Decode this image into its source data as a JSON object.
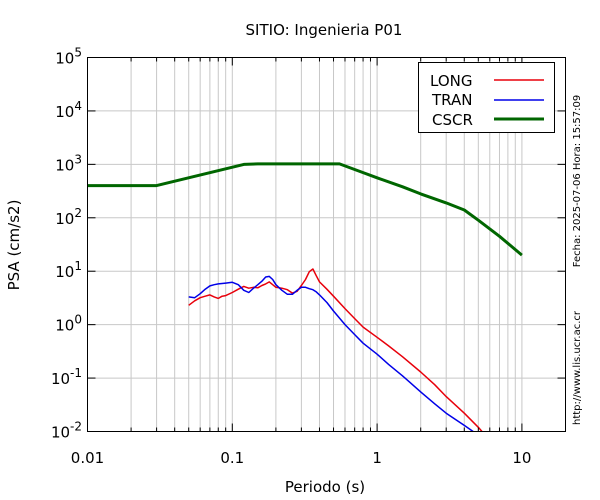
{
  "chart_data": {
    "type": "line",
    "title": "SITIO: Ingenieria P01",
    "xlabel": "Periodo (s)",
    "ylabel": "PSA (cm/s2)",
    "xscale": "log",
    "yscale": "log",
    "xlim": [
      0.01,
      20
    ],
    "ylim": [
      0.01,
      100000
    ],
    "grid": true,
    "legend_position": "top-right",
    "x_ticks": [
      {
        "value": 0.01,
        "label": "0.01"
      },
      {
        "value": 0.1,
        "label": "0.1"
      },
      {
        "value": 1,
        "label": "1"
      },
      {
        "value": 10,
        "label": "10"
      }
    ],
    "y_ticks": [
      {
        "value": 0.01,
        "mant": "10",
        "exp": "-2"
      },
      {
        "value": 0.1,
        "mant": "10",
        "exp": "-1"
      },
      {
        "value": 1,
        "mant": "10",
        "exp": "0"
      },
      {
        "value": 10,
        "mant": "10",
        "exp": "1"
      },
      {
        "value": 100,
        "mant": "10",
        "exp": "2"
      },
      {
        "value": 1000,
        "mant": "10",
        "exp": "3"
      },
      {
        "value": 10000,
        "mant": "10",
        "exp": "4"
      },
      {
        "value": 100000,
        "mant": "10",
        "exp": "5"
      }
    ],
    "side_text": [
      "Fecha: 2025-07-06 Hora: 15:57:09",
      "http://www.lis.ucr.ac.cr"
    ],
    "series": [
      {
        "name": "LONG",
        "color": "#e8000b",
        "width": 1.5,
        "x": [
          0.05,
          0.055,
          0.06,
          0.065,
          0.07,
          0.075,
          0.08,
          0.085,
          0.09,
          0.1,
          0.11,
          0.12,
          0.13,
          0.14,
          0.15,
          0.16,
          0.17,
          0.18,
          0.19,
          0.2,
          0.22,
          0.24,
          0.26,
          0.28,
          0.3,
          0.32,
          0.34,
          0.36,
          0.38,
          0.4,
          0.45,
          0.5,
          0.6,
          0.7,
          0.8,
          1.0,
          1.2,
          1.5,
          2.0,
          2.5,
          3.0,
          4.0,
          5.0,
          5.3
        ],
        "y": [
          2.3,
          2.8,
          3.2,
          3.4,
          3.6,
          3.3,
          3.1,
          3.4,
          3.5,
          4.0,
          4.6,
          5.2,
          4.8,
          5.0,
          4.9,
          5.4,
          5.8,
          6.3,
          5.6,
          5.0,
          4.8,
          4.5,
          3.9,
          4.2,
          5.4,
          7.0,
          9.8,
          11.0,
          8.2,
          6.3,
          4.6,
          3.4,
          2.0,
          1.3,
          0.9,
          0.58,
          0.4,
          0.25,
          0.13,
          0.075,
          0.045,
          0.022,
          0.012,
          0.01
        ]
      },
      {
        "name": "TRAN",
        "color": "#0000e8",
        "width": 1.5,
        "x": [
          0.05,
          0.055,
          0.06,
          0.065,
          0.07,
          0.075,
          0.08,
          0.09,
          0.1,
          0.11,
          0.12,
          0.13,
          0.14,
          0.15,
          0.16,
          0.17,
          0.18,
          0.19,
          0.2,
          0.22,
          0.24,
          0.26,
          0.28,
          0.3,
          0.32,
          0.34,
          0.36,
          0.38,
          0.4,
          0.45,
          0.5,
          0.6,
          0.7,
          0.8,
          1.0,
          1.2,
          1.5,
          2.0,
          2.5,
          3.0,
          4.0,
          4.6
        ],
        "y": [
          3.3,
          3.2,
          3.8,
          4.6,
          5.3,
          5.6,
          5.8,
          6.0,
          6.2,
          5.6,
          4.4,
          4.0,
          4.8,
          5.6,
          6.5,
          7.8,
          8.0,
          7.0,
          5.6,
          4.4,
          3.7,
          3.7,
          4.4,
          5.0,
          5.0,
          4.7,
          4.5,
          4.1,
          3.6,
          2.6,
          1.8,
          1.0,
          0.65,
          0.45,
          0.28,
          0.18,
          0.11,
          0.055,
          0.033,
          0.022,
          0.013,
          0.01
        ]
      },
      {
        "name": "CSCR",
        "color": "#006600",
        "width": 3,
        "x": [
          0.01,
          0.03,
          0.12,
          0.15,
          0.2,
          0.3,
          0.55,
          0.8,
          1.0,
          1.5,
          2.0,
          3.0,
          4.0,
          5.0,
          7.0,
          10.0
        ],
        "y": [
          400,
          400,
          1000,
          1020,
          1020,
          1020,
          1020,
          700,
          560,
          380,
          280,
          190,
          140,
          90,
          45,
          20
        ]
      }
    ]
  }
}
